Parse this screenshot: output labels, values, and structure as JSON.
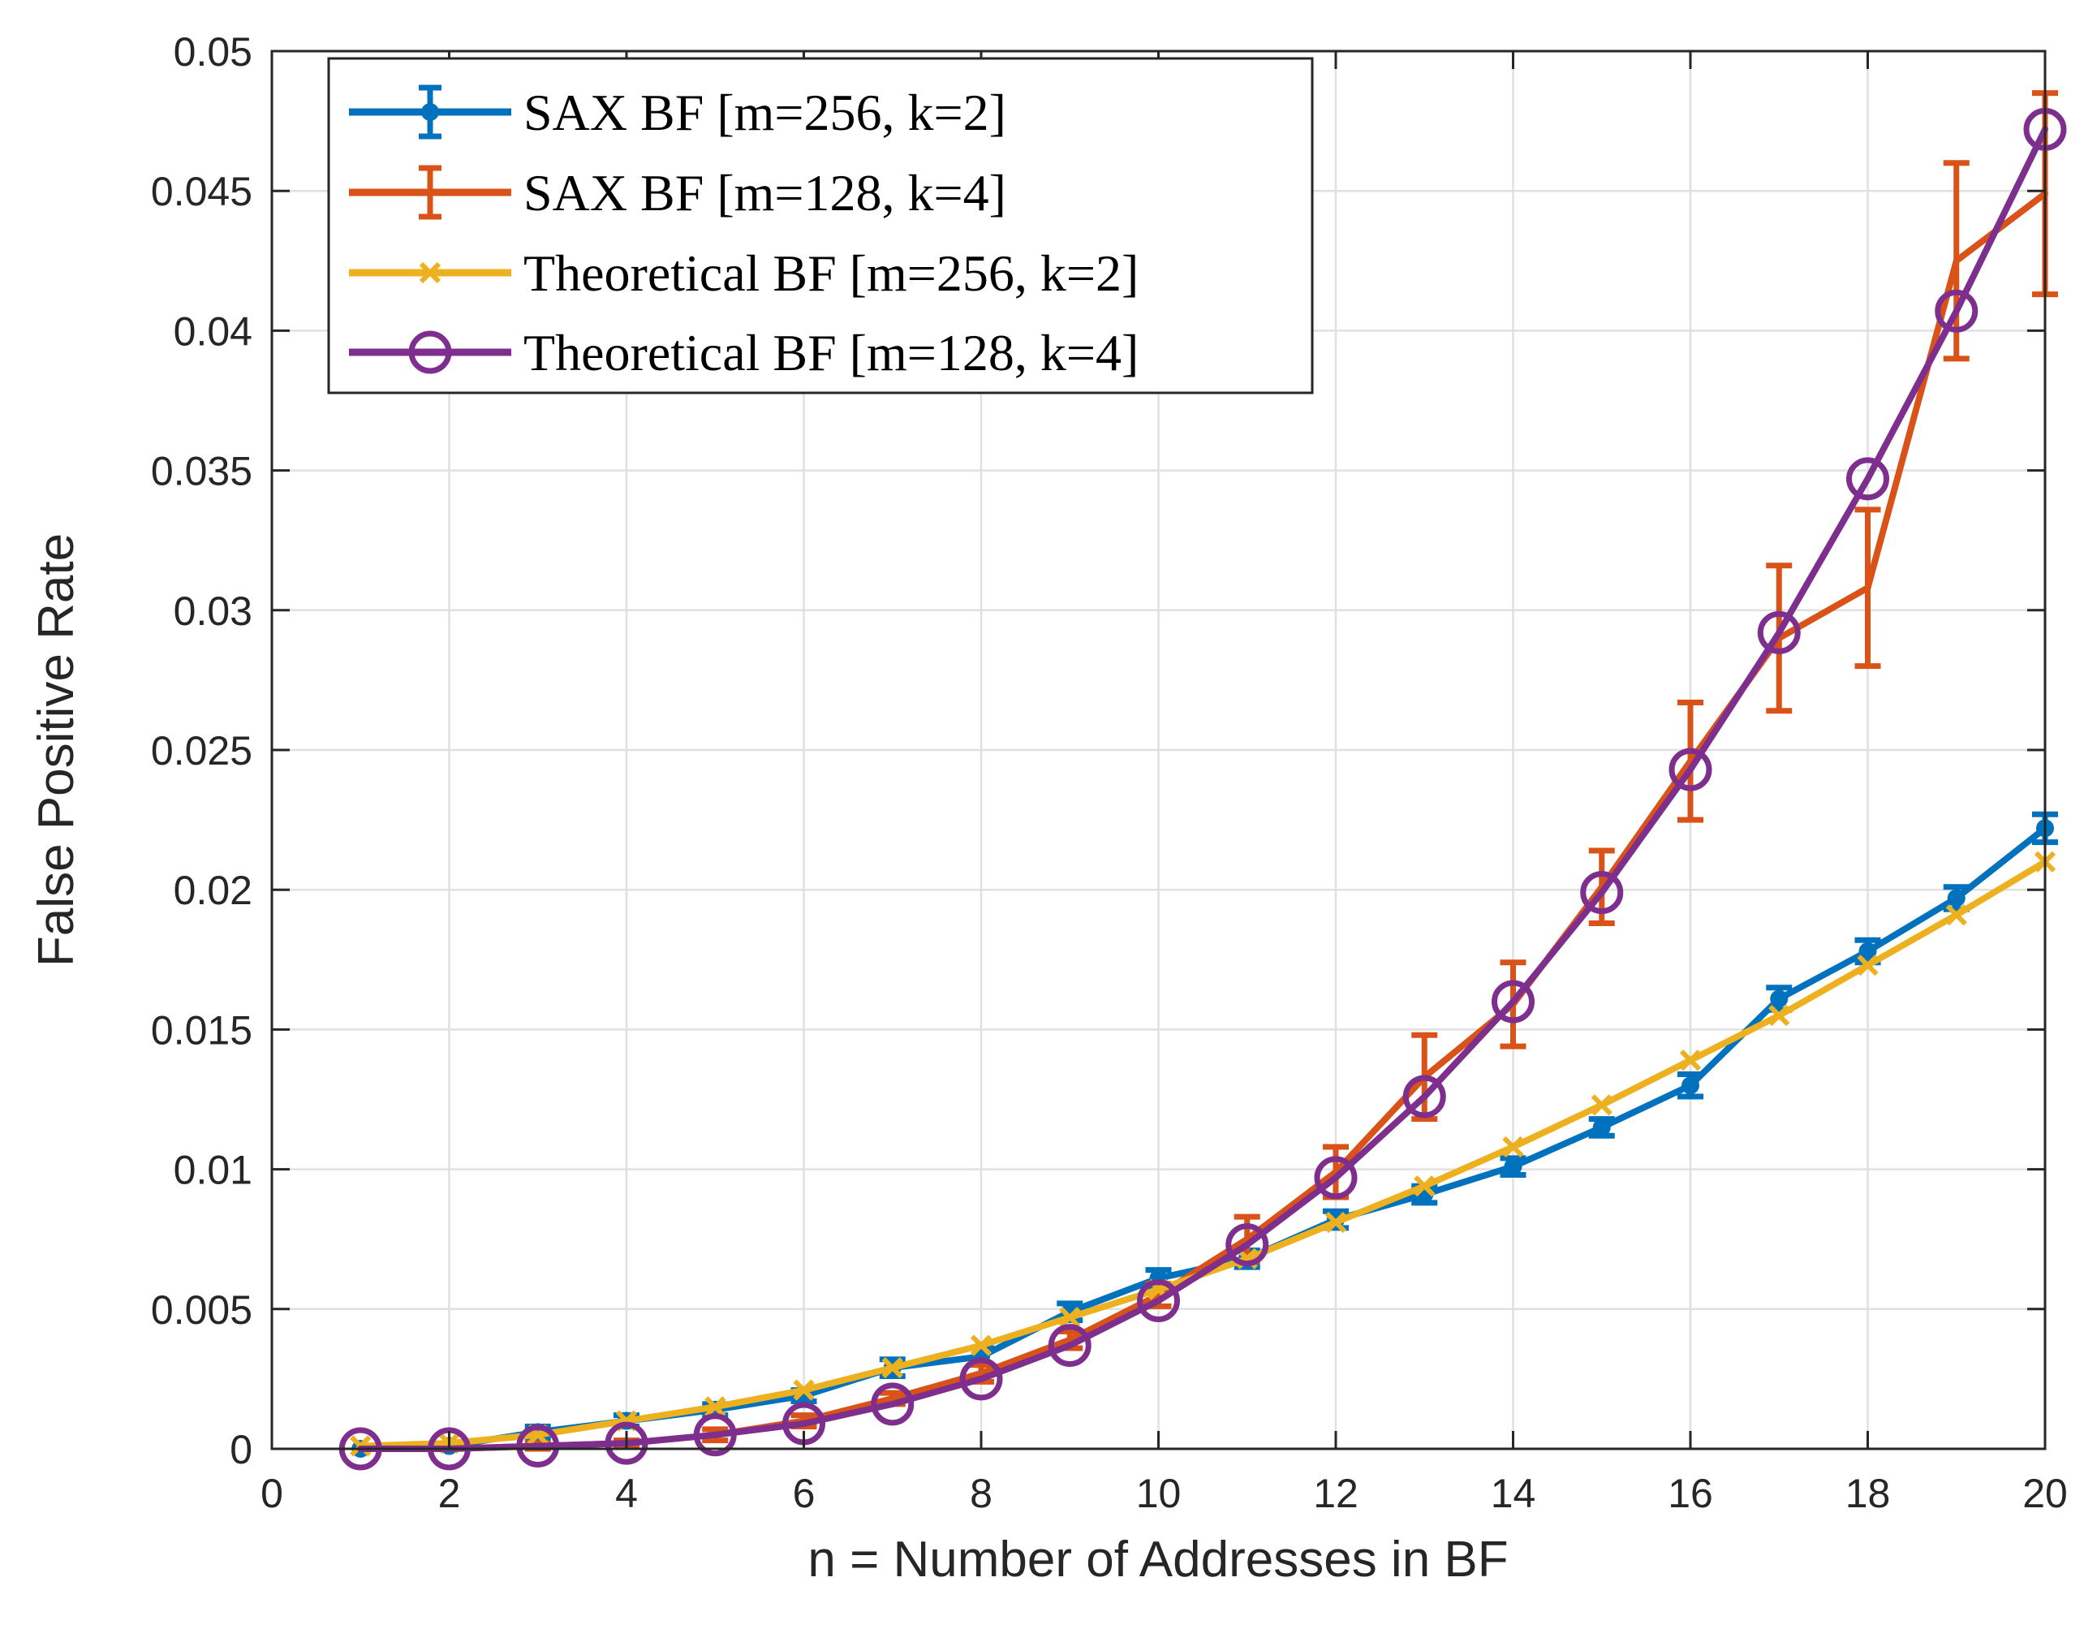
{
  "chart_data": {
    "type": "line",
    "title": "",
    "xlabel": "n = Number of Addresses in BF",
    "ylabel": "False Positive Rate",
    "xlim": [
      0,
      20
    ],
    "ylim": [
      0,
      0.05
    ],
    "xticks": [
      0,
      2,
      4,
      6,
      8,
      10,
      12,
      14,
      16,
      18,
      20
    ],
    "xtick_labels": [
      "0",
      "2",
      "4",
      "6",
      "8",
      "10",
      "12",
      "14",
      "16",
      "18",
      "20"
    ],
    "yticks": [
      0,
      0.005,
      0.01,
      0.015,
      0.02,
      0.025,
      0.03,
      0.035,
      0.04,
      0.045,
      0.05
    ],
    "ytick_labels": [
      "0",
      "0.005",
      "0.01",
      "0.015",
      "0.02",
      "0.025",
      "0.03",
      "0.035",
      "0.04",
      "0.045",
      "0.05"
    ],
    "grid": true,
    "legend_position": "top-left",
    "x": [
      1,
      2,
      3,
      4,
      5,
      6,
      7,
      8,
      9,
      10,
      11,
      12,
      13,
      14,
      15,
      16,
      17,
      18,
      19,
      20
    ],
    "series": [
      {
        "name": "SAX BF [m=256, k=2]",
        "color": "#0072BD",
        "marker": "dot",
        "errorbars": true,
        "values": [
          0,
          0.0001,
          0.0006,
          0.001,
          0.0014,
          0.0019,
          0.0029,
          0.0033,
          0.0049,
          0.0061,
          0.0068,
          0.0082,
          0.0091,
          0.0101,
          0.0115,
          0.013,
          0.0161,
          0.0178,
          0.0197,
          0.0222
        ],
        "errors": [
          0,
          0.0001,
          0.0002,
          0.0002,
          0.0002,
          0.0002,
          0.0003,
          0.0003,
          0.0003,
          0.0003,
          0.0003,
          0.0003,
          0.0003,
          0.0003,
          0.0003,
          0.0004,
          0.0004,
          0.0004,
          0.0004,
          0.0005
        ]
      },
      {
        "name": "SAX BF [m=128, k=4]",
        "color": "#D95319",
        "marker": "none",
        "errorbars": true,
        "values": [
          0,
          0,
          0.0001,
          0.0002,
          0.0005,
          0.001,
          0.0018,
          0.0027,
          0.0039,
          0.0055,
          0.0075,
          0.0099,
          0.0133,
          0.0159,
          0.0201,
          0.0246,
          0.029,
          0.0308,
          0.0425,
          0.0449
        ],
        "errors": [
          0,
          0,
          0.0001,
          0.0001,
          0.0002,
          0.0002,
          0.0002,
          0.0003,
          0.0003,
          0.0004,
          0.0008,
          0.0009,
          0.0015,
          0.0015,
          0.0013,
          0.0021,
          0.0026,
          0.0028,
          0.0035,
          0.0036
        ]
      },
      {
        "name": "Theoretical BF [m=256, k=2]",
        "color": "#EDB120",
        "marker": "x",
        "errorbars": false,
        "values": [
          0.0001,
          0.0002,
          0.0005,
          0.001,
          0.0015,
          0.0021,
          0.0029,
          0.0037,
          0.0047,
          0.0057,
          0.0068,
          0.0081,
          0.0094,
          0.0108,
          0.0123,
          0.0139,
          0.0155,
          0.0173,
          0.0191,
          0.021
        ]
      },
      {
        "name": "Theoretical BF [m=128, k=4]",
        "color": "#7E2F8E",
        "marker": "o",
        "errorbars": false,
        "values": [
          0,
          0,
          0.0001,
          0.0002,
          0.0005,
          0.0009,
          0.0016,
          0.0025,
          0.0037,
          0.0053,
          0.0073,
          0.0097,
          0.0126,
          0.016,
          0.0199,
          0.0243,
          0.0292,
          0.0347,
          0.0407,
          0.0472
        ]
      }
    ]
  }
}
